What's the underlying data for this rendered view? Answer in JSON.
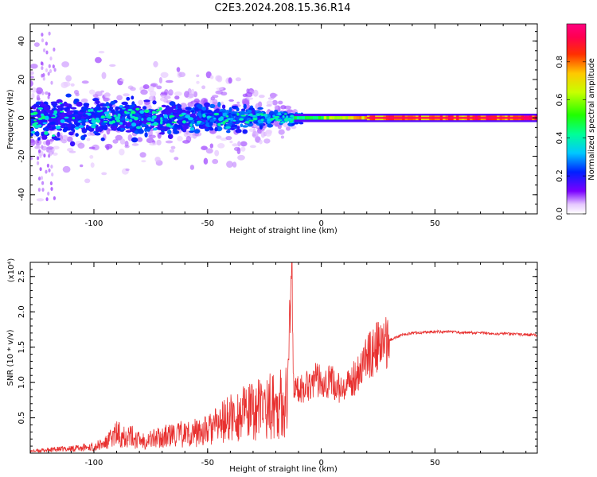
{
  "title": "C2E3.2024.208.15.36.R14",
  "chart_data": [
    {
      "type": "heatmap",
      "xlabel": "Height of straight line (km)",
      "ylabel": "Frequency (Hz)",
      "xlim": [
        -128,
        95
      ],
      "ylim": [
        -50,
        49
      ],
      "xticks": [
        -100,
        -50,
        0,
        50
      ],
      "yticks": [
        -40,
        -20,
        0,
        20,
        40
      ],
      "colorbar": {
        "label": "Normalized spectral amplitude",
        "range": [
          0.0,
          1.0
        ],
        "ticks": [
          0.0,
          0.2,
          0.4,
          0.6,
          0.8
        ],
        "tick_labels": [
          "0.0",
          "0.2",
          "0.4",
          "0.6",
          "0.8"
        ]
      },
      "description_points": [
        {
          "x": -120,
          "freq_spread": 12,
          "amplitude": 0.25
        },
        {
          "x": -80,
          "freq_spread": 9,
          "amplitude": 0.3
        },
        {
          "x": -40,
          "freq_spread": 8,
          "amplitude": 0.35
        },
        {
          "x": -15,
          "freq_spread": 3,
          "amplitude": 0.45
        },
        {
          "x": 0,
          "freq_spread": 2,
          "amplitude": 0.6
        },
        {
          "x": 25,
          "freq_spread": 1,
          "amplitude": 0.85
        },
        {
          "x": 90,
          "freq_spread": 1,
          "amplitude": 0.95
        }
      ]
    },
    {
      "type": "line",
      "xlabel": "Height of straight line (km)",
      "ylabel": "SNR (10 * v/v)",
      "y_multiplier": "(x10⁴)",
      "xlim": [
        -128,
        95
      ],
      "ylim": [
        0,
        2.7
      ],
      "xticks": [
        -100,
        -50,
        0,
        50
      ],
      "yticks": [
        0.5,
        1.0,
        1.5,
        2.0,
        2.5
      ],
      "ytick_labels": [
        "0.5",
        "1.0",
        "1.5",
        "2.0",
        "2.5"
      ],
      "color": "#e8302f",
      "series": [
        {
          "x": [
            -128,
            -120,
            -110,
            -100,
            -95,
            -90,
            -85,
            -80,
            -75,
            -70,
            -65,
            -60,
            -55,
            -50,
            -45,
            -40,
            -35,
            -30,
            -25,
            -20,
            -15,
            -13,
            -12,
            -10,
            -5,
            0,
            5,
            10,
            15,
            20,
            25,
            30,
            35,
            40,
            50,
            60,
            70,
            80,
            95
          ],
          "y": [
            0.03,
            0.05,
            0.07,
            0.1,
            0.15,
            0.3,
            0.28,
            0.2,
            0.22,
            0.25,
            0.28,
            0.3,
            0.32,
            0.35,
            0.45,
            0.55,
            0.6,
            0.65,
            0.72,
            0.75,
            0.8,
            2.7,
            0.85,
            0.9,
            1.0,
            1.05,
            1.0,
            0.85,
            1.1,
            1.35,
            1.5,
            1.6,
            1.67,
            1.7,
            1.72,
            1.71,
            1.7,
            1.69,
            1.67
          ]
        }
      ]
    }
  ]
}
